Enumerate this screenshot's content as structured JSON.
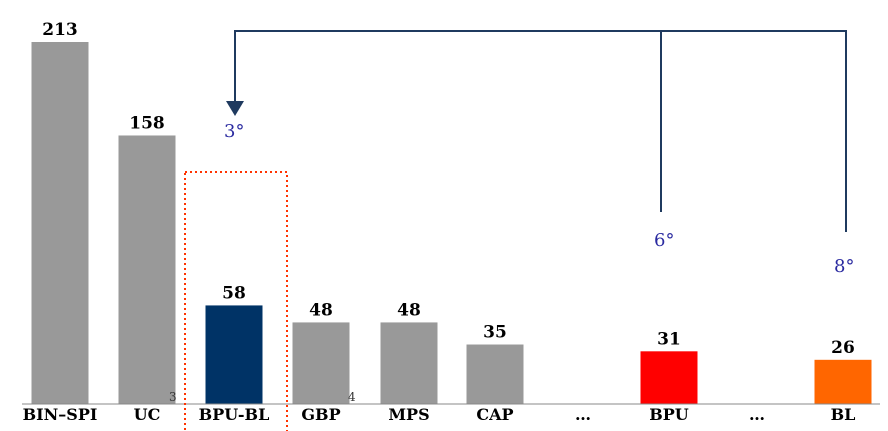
{
  "chart_data": {
    "type": "bar",
    "categories": [
      "BIN–SPI",
      "UC",
      "BPU-BL",
      "GBP",
      "MPS",
      "CAP",
      "…",
      "BPU",
      "…",
      "BL"
    ],
    "values": [
      213,
      158,
      58,
      48,
      48,
      35,
      null,
      31,
      null,
      26
    ],
    "value_labels": [
      "213",
      "158",
      "58",
      "48",
      "48",
      "35",
      "",
      "31",
      "",
      "26"
    ],
    "colors": [
      "#999999",
      "#999999",
      "#003366",
      "#999999",
      "#999999",
      "#999999",
      null,
      "#ff0000",
      null,
      "#ff6600"
    ],
    "ylim": [
      0,
      213
    ],
    "grid": false,
    "annotations": {
      "rank_target": "3°",
      "rank_bpu": "6°",
      "rank_bl": "8°",
      "footnote_a": "3",
      "footnote_b": "4"
    },
    "highlight_color": "#ff3300",
    "arrow_color": "#1f3a5f"
  }
}
